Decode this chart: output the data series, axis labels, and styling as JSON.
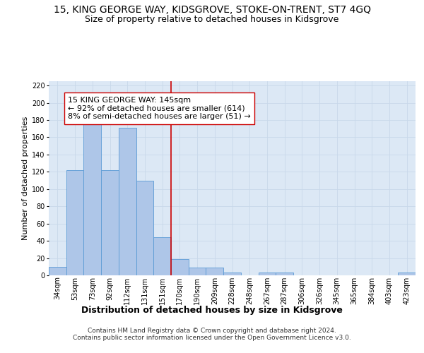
{
  "title": "15, KING GEORGE WAY, KIDSGROVE, STOKE-ON-TRENT, ST7 4GQ",
  "subtitle": "Size of property relative to detached houses in Kidsgrove",
  "xlabel_bottom": "Distribution of detached houses by size in Kidsgrove",
  "ylabel": "Number of detached properties",
  "categories": [
    "34sqm",
    "53sqm",
    "73sqm",
    "92sqm",
    "112sqm",
    "131sqm",
    "151sqm",
    "170sqm",
    "190sqm",
    "209sqm",
    "228sqm",
    "248sqm",
    "267sqm",
    "287sqm",
    "306sqm",
    "326sqm",
    "345sqm",
    "365sqm",
    "384sqm",
    "403sqm",
    "423sqm"
  ],
  "bar_heights": [
    10,
    122,
    175,
    122,
    171,
    110,
    44,
    19,
    9,
    9,
    3,
    0,
    3,
    3,
    0,
    0,
    0,
    0,
    0,
    0,
    3
  ],
  "bar_color": "#aec6e8",
  "bar_edge_color": "#5b9bd5",
  "vline_x_index": 6.5,
  "vline_color": "#cc0000",
  "annotation_text": "15 KING GEORGE WAY: 145sqm\n← 92% of detached houses are smaller (614)\n8% of semi-detached houses are larger (51) →",
  "annotation_box_color": "#ffffff",
  "annotation_box_edge_color": "#cc0000",
  "ylim": [
    0,
    225
  ],
  "yticks": [
    0,
    20,
    40,
    60,
    80,
    100,
    120,
    140,
    160,
    180,
    200,
    220
  ],
  "grid_color": "#c8d8ea",
  "background_color": "#dce8f5",
  "footer_text": "Contains HM Land Registry data © Crown copyright and database right 2024.\nContains public sector information licensed under the Open Government Licence v3.0.",
  "title_fontsize": 10,
  "subtitle_fontsize": 9,
  "xlabel_bottom_fontsize": 9,
  "ylabel_fontsize": 8,
  "tick_fontsize": 7,
  "annotation_fontsize": 8,
  "footer_fontsize": 6.5
}
